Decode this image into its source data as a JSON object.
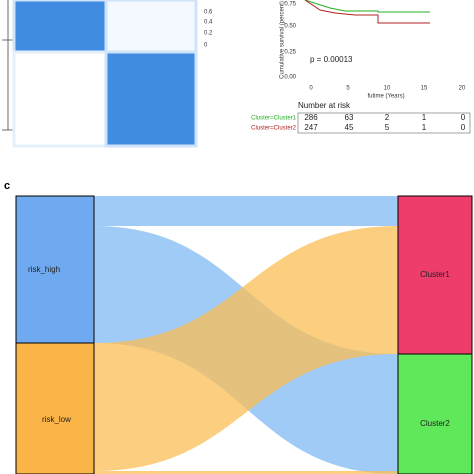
{
  "heatmap": {
    "legend_ticks": [
      "0.6",
      "0.4",
      "0.2",
      "0"
    ]
  },
  "survival": {
    "ylabel": "Cumulative survival (percent)",
    "yticks": [
      "0.75",
      "0.50",
      "0.25",
      "0.00"
    ],
    "xticks": [
      "0",
      "5",
      "10",
      "15",
      "20"
    ],
    "xlabel": "futime (Years)",
    "pvalue": "p = 0.00013",
    "risk_table": {
      "title": "Number at risk",
      "rows": [
        {
          "name": "Cluster=Cluster1",
          "values": [
            "286",
            "63",
            "2",
            "1",
            "0"
          ]
        },
        {
          "name": "Cluster=Cluster2",
          "values": [
            "247",
            "45",
            "5",
            "1",
            "0"
          ]
        }
      ]
    }
  },
  "sankey": {
    "panel_label": "c",
    "left_nodes": [
      "risk_high",
      "risk_low"
    ],
    "right_nodes": [
      "Cluster1",
      "Cluster2"
    ]
  }
}
